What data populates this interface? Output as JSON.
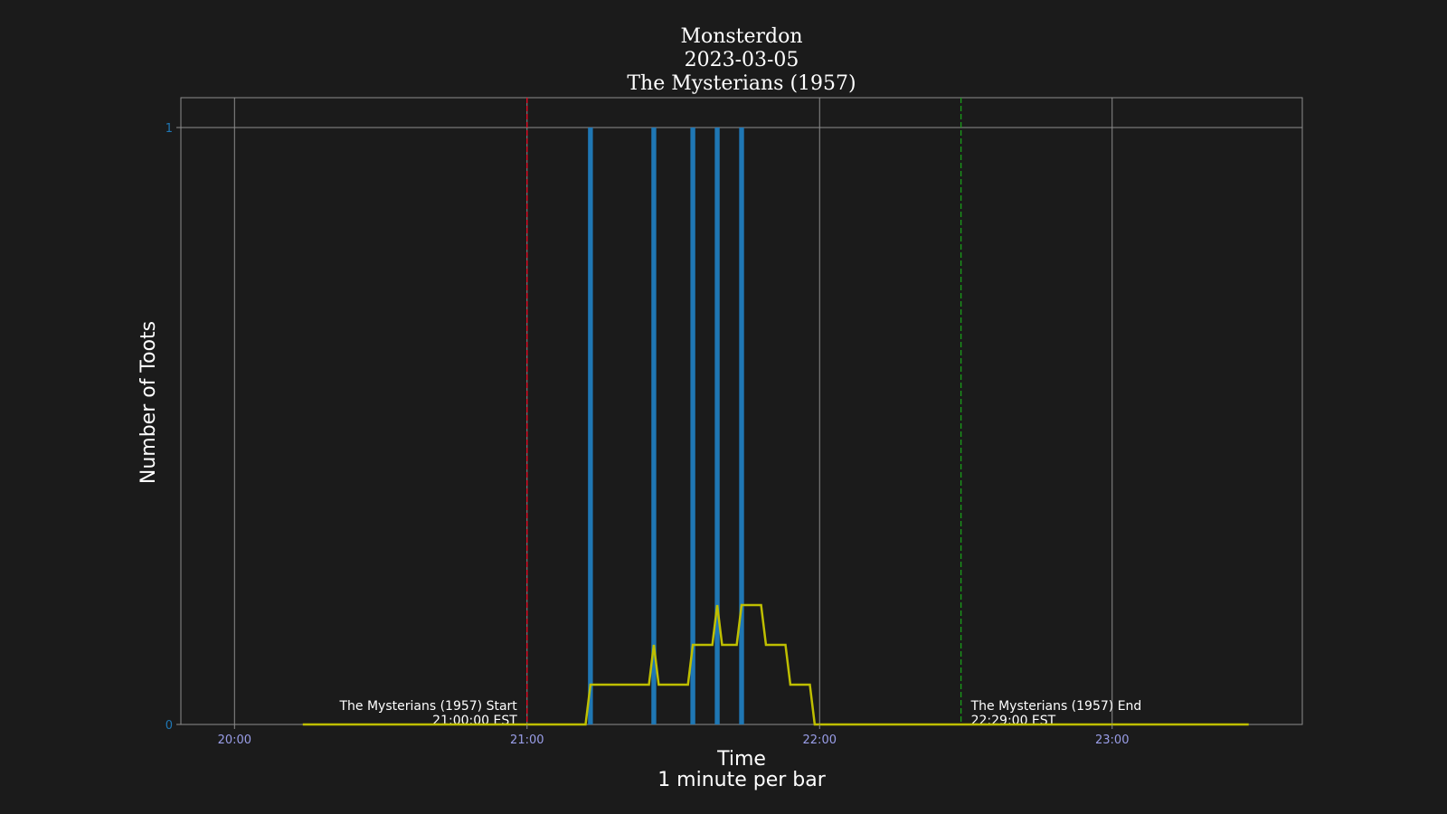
{
  "chart_data": {
    "type": "bar",
    "title": [
      "Monsterdon",
      "2023-03-05",
      "The Mysterians (1957)"
    ],
    "xlabel": [
      "Time",
      "1 minute per bar"
    ],
    "ylabel": "Number of Toots",
    "x_ticks": [
      "20:00",
      "21:00",
      "22:00",
      "23:00"
    ],
    "y_ticks": [
      "0",
      "1"
    ],
    "ylim": [
      0,
      1.05
    ],
    "xlim": [
      "19:49",
      "23:39"
    ],
    "bars": {
      "times": [
        "21:13",
        "21:26",
        "21:34",
        "21:39",
        "21:44"
      ],
      "values": [
        1,
        1,
        1,
        1,
        1
      ]
    },
    "rolling_line": {
      "x": [
        "20:14",
        "21:12",
        "21:13",
        "21:25",
        "21:26",
        "21:27",
        "21:33",
        "21:34",
        "21:38",
        "21:39",
        "21:40",
        "21:43",
        "21:44",
        "21:48",
        "21:49",
        "21:53",
        "21:54",
        "21:58",
        "21:59",
        "23:28"
      ],
      "y": [
        0,
        0,
        0.0667,
        0.0667,
        0.1333,
        0.0667,
        0.0667,
        0.1333,
        0.1333,
        0.2,
        0.1333,
        0.1333,
        0.2,
        0.2,
        0.1333,
        0.1333,
        0.0667,
        0.0667,
        0,
        0
      ]
    },
    "events": [
      {
        "time": "21:00",
        "label_line1": "The Mysterians (1957) Start",
        "label_line2": "21:00:00 EST",
        "color": "#e8001b",
        "align": "right"
      },
      {
        "time": "22:29",
        "label_line1": "The Mysterians (1957) End",
        "label_line2": "22:29:00 EST",
        "color": "#1a9e1a",
        "align": "left"
      }
    ],
    "grid": true,
    "colors": {
      "background": "#1b1b1b",
      "bar": "#1f77b4",
      "line": "#bfbf00",
      "grid": "#8c8c8c",
      "xtick": "#9a9ee8",
      "ytick": "#1f77b4"
    }
  }
}
